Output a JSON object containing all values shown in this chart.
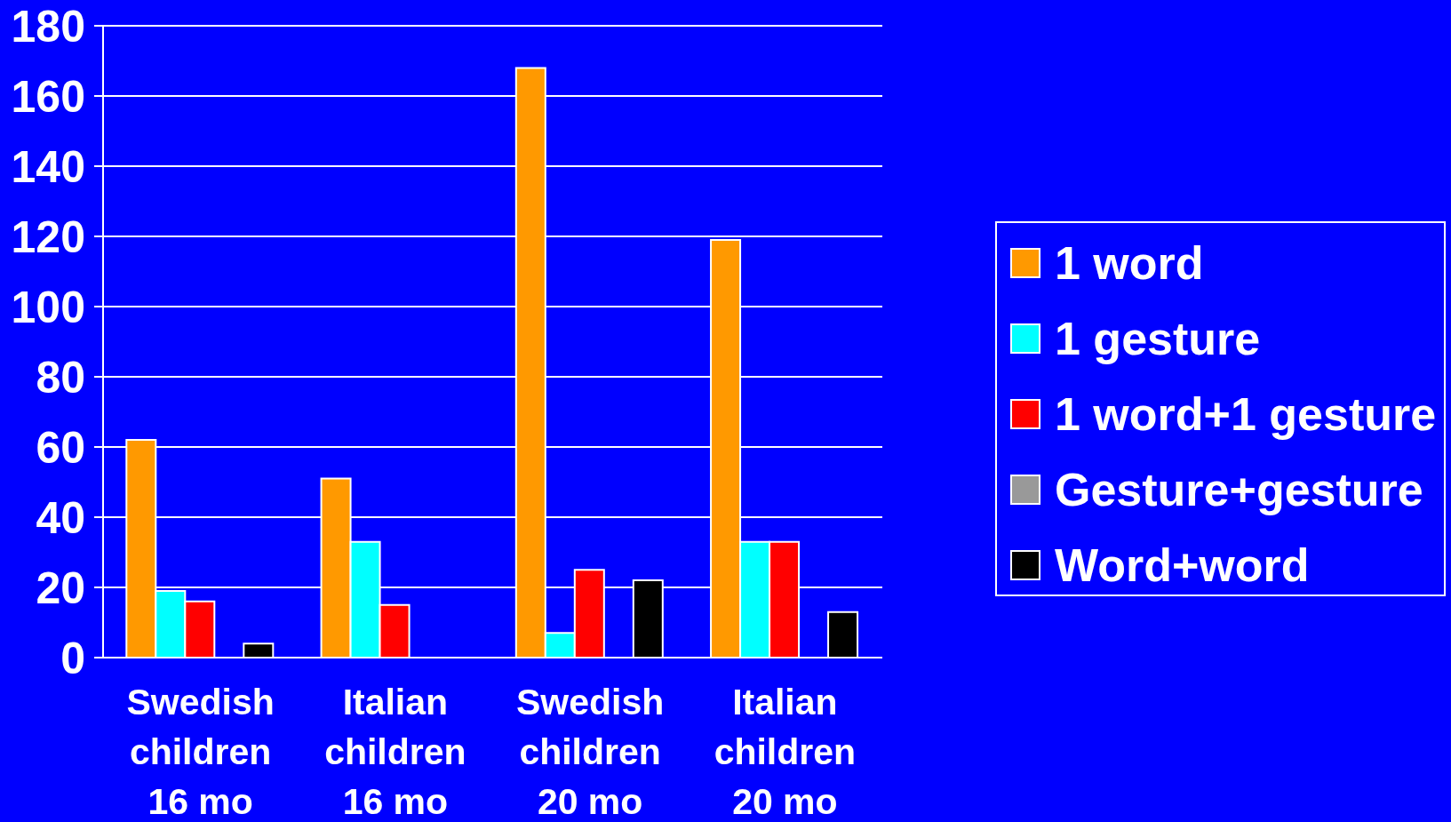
{
  "chart_data": {
    "type": "bar",
    "categories": [
      "Swedish\nchildren\n16 mo",
      "Italian\nchildren\n16 mo",
      "Swedish\nchildren\n20 mo",
      "Italian\nchildren\n20 mo"
    ],
    "series": [
      {
        "name": "1 word",
        "color": "#ff9900",
        "values": [
          62,
          51,
          168,
          119
        ]
      },
      {
        "name": "1 gesture",
        "color": "#00ffff",
        "values": [
          19,
          33,
          7,
          33
        ]
      },
      {
        "name": "1 word+1 gesture",
        "color": "#ff0000",
        "values": [
          16,
          15,
          25,
          33
        ]
      },
      {
        "name": "Gesture+gesture",
        "color": "#999999",
        "values": [
          0,
          0,
          0,
          0
        ]
      },
      {
        "name": "Word+word",
        "color": "#000000",
        "values": [
          4,
          0,
          22,
          13
        ]
      }
    ],
    "ylim": [
      0,
      180
    ],
    "yticks": [
      0,
      20,
      40,
      60,
      80,
      100,
      120,
      140,
      160,
      180
    ],
    "grid": "y",
    "legend": "right"
  }
}
